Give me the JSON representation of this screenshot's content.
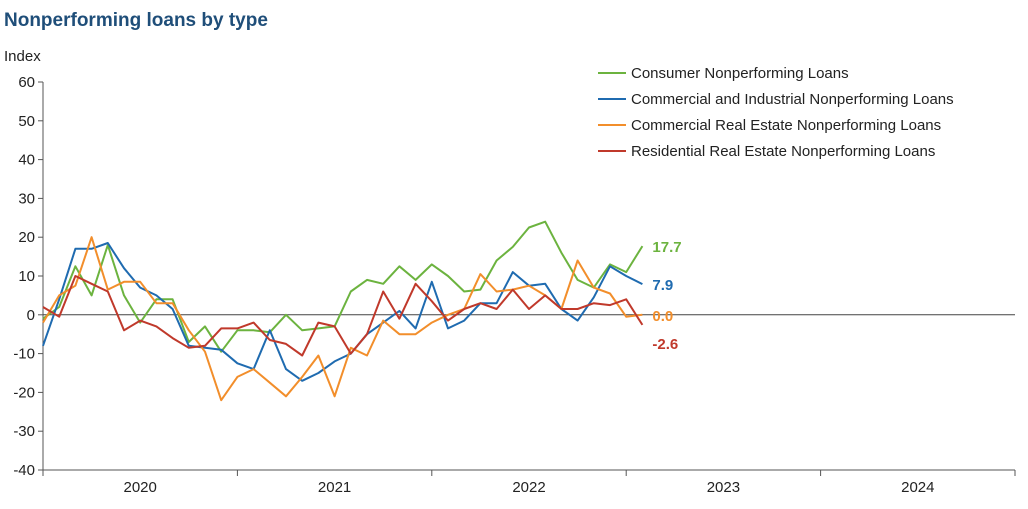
{
  "chart_data": {
    "type": "line",
    "title": "Nonperforming loans by type",
    "ylabel": "Index",
    "xlabel": "",
    "ylim": [
      -40,
      60
    ],
    "yticks": [
      60,
      50,
      40,
      30,
      20,
      10,
      0,
      -10,
      -20,
      -30,
      -40
    ],
    "x_year_labels": [
      "2020",
      "2021",
      "2022",
      "2023",
      "2024"
    ],
    "x_start": 2019.5,
    "x_step": 0.08333333,
    "legend_position": "top-right",
    "series": [
      {
        "name": "Consumer Nonperforming Loans",
        "color": "#6cb33f",
        "end_label": "17.7",
        "values": [
          -1,
          2,
          12.5,
          5,
          18,
          5,
          -2,
          4,
          4,
          -7,
          -3,
          -9.5,
          -4,
          -4,
          -4.5,
          0,
          -4,
          -3.5,
          -3,
          6,
          9,
          8,
          12.5,
          9,
          13,
          10,
          6,
          6.5,
          14,
          17.5,
          22.5,
          24,
          16,
          9,
          7,
          13,
          11,
          17.7
        ]
      },
      {
        "name": "Commercial and Industrial Nonperforming Loans",
        "color": "#1f6bb0",
        "end_label": "7.9",
        "values": [
          -8,
          4,
          17,
          17,
          18.5,
          12,
          7,
          5,
          1.5,
          -8,
          -8.5,
          -9,
          -12.5,
          -14,
          -4,
          -14,
          -17,
          -15,
          -12,
          -10,
          -5,
          -2,
          1,
          -3.5,
          8.5,
          -3.5,
          -1.5,
          3,
          3,
          11,
          7.5,
          8,
          1.5,
          -1.5,
          4.5,
          12.5,
          10,
          7.9
        ]
      },
      {
        "name": "Commercial Real Estate Nonperforming Loans",
        "color": "#f28e2b",
        "end_label": "0.0",
        "values": [
          -2,
          5,
          7.5,
          20,
          6.5,
          8.5,
          8.5,
          3,
          3,
          -4,
          -9.5,
          -22,
          -16,
          -14,
          -17.5,
          -21,
          -16,
          -10.5,
          -21,
          -8.5,
          -10.5,
          -1.5,
          -5,
          -5,
          -2,
          0,
          1.5,
          10.5,
          6,
          6.5,
          7.5,
          5,
          1.5,
          14,
          7,
          5.5,
          -0.5,
          0
        ]
      },
      {
        "name": "Residential Real Estate Nonperforming Loans",
        "color": "#c0392b",
        "end_label": "-2.6",
        "values": [
          2,
          -0.5,
          10,
          8,
          6,
          -4,
          -1.5,
          -3,
          -6,
          -8.5,
          -8,
          -3.5,
          -3.5,
          -2,
          -6.5,
          -7.5,
          -10.5,
          -2,
          -3,
          -10,
          -5,
          6,
          -1,
          8,
          3.5,
          -1.5,
          1.5,
          3,
          1.5,
          6.5,
          1.5,
          5,
          1.5,
          1.5,
          3,
          2.5,
          4,
          -2.6
        ]
      }
    ]
  }
}
